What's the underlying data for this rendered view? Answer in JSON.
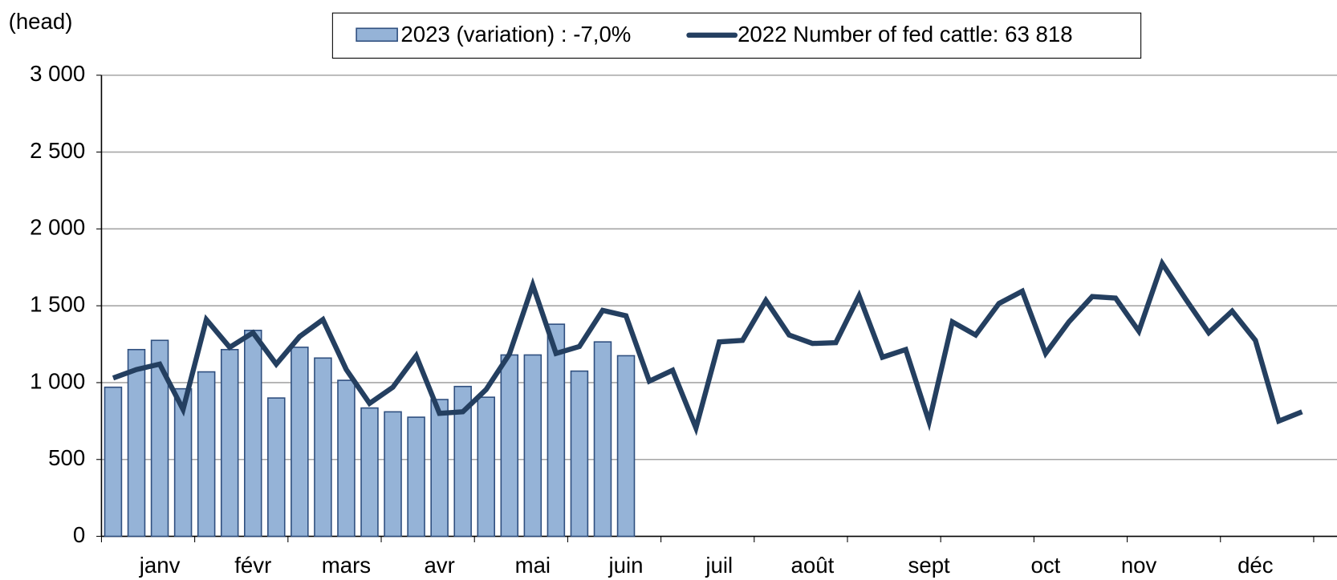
{
  "chart_data": {
    "type": "bar_line",
    "y_label": "(head)",
    "categories": [
      null,
      null,
      "janv",
      null,
      null,
      null,
      "févr",
      null,
      null,
      null,
      "mars",
      null,
      null,
      null,
      "avr",
      null,
      null,
      null,
      "mai",
      null,
      null,
      null,
      "juin",
      null,
      null,
      null,
      "juil",
      null,
      null,
      null,
      "août",
      null,
      null,
      null,
      null,
      "sept",
      null,
      null,
      null,
      null,
      "oct",
      null,
      null,
      null,
      "nov",
      null,
      null,
      null,
      null,
      "déc",
      null,
      null,
      null
    ],
    "series": [
      {
        "name": "2023 (variation) : -7,0%",
        "type": "bar",
        "color": "#95b3d7",
        "edge": "#2f4f7f",
        "values": [
          970,
          1215,
          1275,
          960,
          1070,
          1215,
          1340,
          900,
          1230,
          1160,
          1015,
          835,
          810,
          775,
          890,
          975,
          905,
          1180,
          1180,
          1380,
          1075,
          1265,
          1175,
          null,
          null,
          null,
          null,
          null,
          null,
          null,
          null,
          null,
          null,
          null,
          null,
          null,
          null,
          null,
          null,
          null,
          null,
          null,
          null,
          null,
          null,
          null,
          null,
          null,
          null,
          null,
          null,
          null,
          null
        ]
      },
      {
        "name": "2022 Number of fed cattle: 63 818",
        "type": "line",
        "color": "#243f60",
        "values": [
          1030,
          1085,
          1120,
          825,
          1410,
          1230,
          1325,
          1120,
          1300,
          1410,
          1085,
          865,
          970,
          1175,
          800,
          810,
          955,
          1185,
          1635,
          1190,
          1235,
          1470,
          1435,
          1010,
          1080,
          705,
          1265,
          1275,
          1535,
          1310,
          1255,
          1260,
          1565,
          1165,
          1215,
          745,
          1395,
          1310,
          1515,
          1595,
          1190,
          1395,
          1560,
          1550,
          1335,
          1775,
          1545,
          1325,
          1465,
          1275,
          750,
          810,
          null
        ]
      }
    ],
    "ylim": [
      0,
      3000
    ],
    "yticks": [
      0,
      500,
      {
        "value": 1000,
        "label": "1 000"
      },
      {
        "value": 1500,
        "label": "1 500"
      },
      {
        "value": 2000,
        "label": "2 000"
      },
      {
        "value": 2500,
        "label": "2 500"
      },
      {
        "value": 3000,
        "label": "3 000"
      }
    ],
    "grid": true,
    "legend": "top"
  }
}
